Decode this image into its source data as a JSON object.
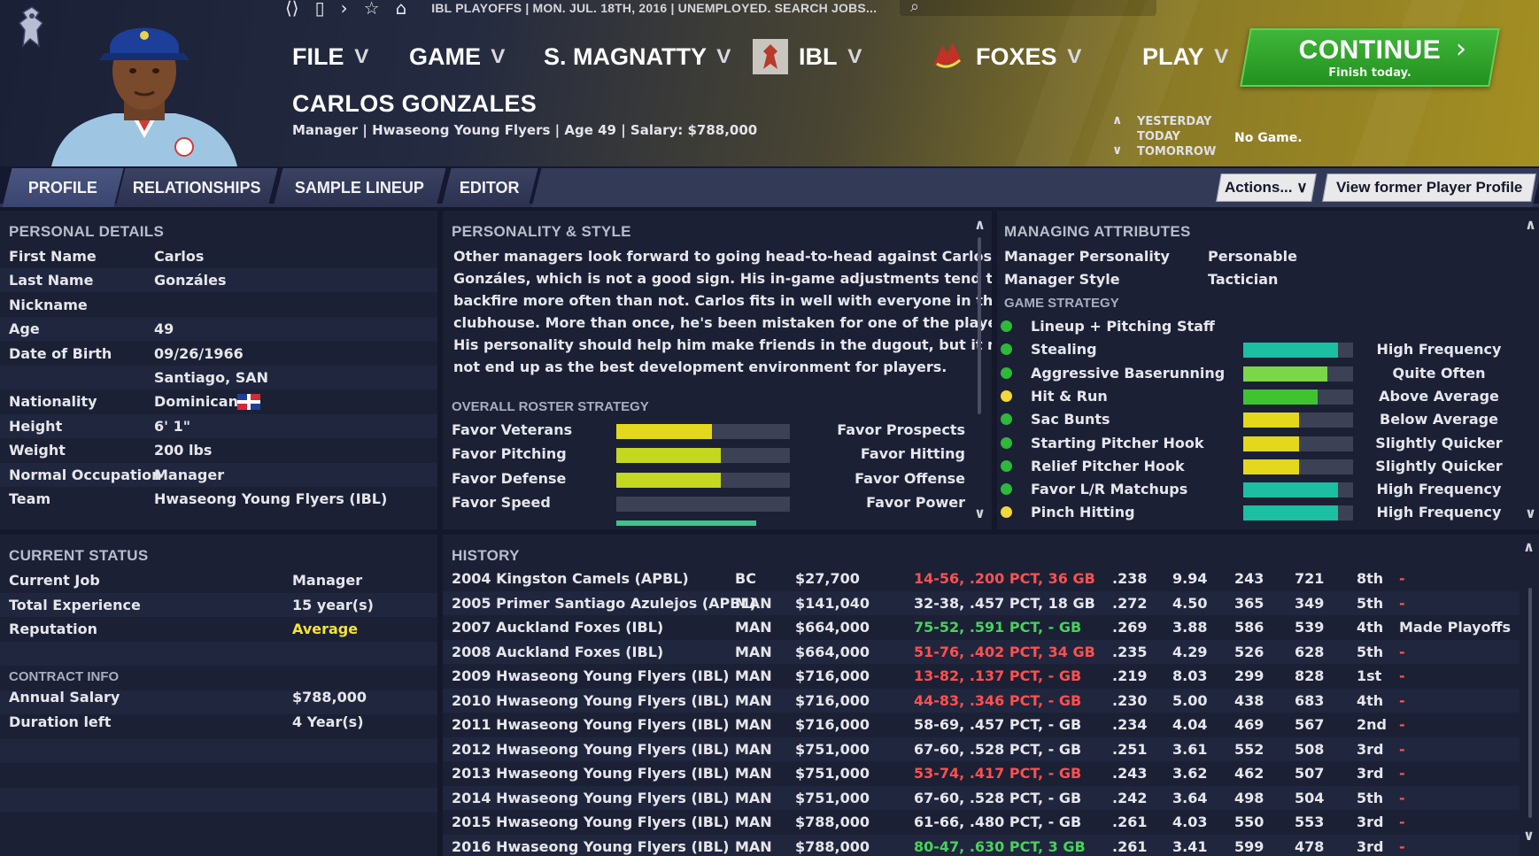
{
  "topbar": {
    "info": "IBL PLAYOFFS  |  MON. JUL. 18TH, 2016  |  UNEMPLOYED. SEARCH JOBS..."
  },
  "nav": {
    "file": "FILE",
    "game": "GAME",
    "manager": "S. MAGNATTY",
    "league": "IBL",
    "team": "FOXES",
    "play": "PLAY"
  },
  "continue": {
    "label": "CONTINUE",
    "sub": "Finish today."
  },
  "person": {
    "name": "CARLOS GONZALES",
    "info": "Manager | Hwaseong Young Flyers  |  Age 49  |  Salary: $788,000"
  },
  "day_nav": {
    "yesterday": "YESTERDAY",
    "today": "TODAY",
    "tomorrow": "TOMORROW",
    "status": "No Game."
  },
  "tabs": [
    "PROFILE",
    "RELATIONSHIPS",
    "SAMPLE LINEUP",
    "EDITOR"
  ],
  "actions": {
    "actions_label": "Actions...",
    "view_former": "View former Player Profile"
  },
  "personal": {
    "title": "PERSONAL DETAILS",
    "rows": [
      {
        "k": "First Name",
        "v": "Carlos"
      },
      {
        "k": "Last Name",
        "v": "Gonzáles"
      },
      {
        "k": "Nickname",
        "v": ""
      },
      {
        "k": "Age",
        "v": "49"
      },
      {
        "k": "Date of Birth",
        "v": "09/26/1966"
      },
      {
        "k": "",
        "v": "Santiago, SAN"
      },
      {
        "k": "Nationality",
        "v": "Dominican"
      },
      {
        "k": "Height",
        "v": "6' 1\""
      },
      {
        "k": "Weight",
        "v": "200 lbs"
      },
      {
        "k": "Normal Occupation",
        "v": "Manager"
      },
      {
        "k": "Team",
        "v": "Hwaseong Young Flyers (IBL)"
      }
    ]
  },
  "personality": {
    "title": "PERSONALITY & STYLE",
    "lines": [
      "Other managers look forward to going head-to-head against Carlos",
      "Gonzáles, which is not a good sign. His in-game adjustments tend to",
      "backfire more often than not. Carlos fits in well with everyone in the",
      "clubhouse. More than once, he's been mistaken for one of the players.",
      "His personality should help him make friends in the dugout, but it may",
      "not end up as the best development environment for players."
    ],
    "roster_title": "OVERALL ROSTER STRATEGY",
    "roster": [
      {
        "left": "Favor Veterans",
        "right": "Favor Prospects",
        "value": 0.55,
        "color": "#e3d81c"
      },
      {
        "left": "Favor Pitching",
        "right": "Favor Hitting",
        "value": 0.6,
        "color": "#c4d81f"
      },
      {
        "left": "Favor Defense",
        "right": "Favor Offense",
        "value": 0.6,
        "color": "#c4d81f"
      },
      {
        "left": "Favor Speed",
        "right": "Favor Power",
        "value": 0.0,
        "color": "#c4d81f"
      }
    ]
  },
  "managing": {
    "title": "MANAGING ATTRIBUTES",
    "personality_k": "Manager Personality",
    "personality_v": "Personable",
    "style_k": "Manager Style",
    "style_v": "Tactician",
    "strategy_title": "GAME STRATEGY",
    "strategy": [
      {
        "label": "Lineup + Pitching Staff",
        "dot": "#2fb83a",
        "value": null,
        "color": "",
        "desc": ""
      },
      {
        "label": "Stealing",
        "dot": "#2fb83a",
        "value": 0.86,
        "color": "#1cbfa2",
        "desc": "High Frequency"
      },
      {
        "label": "Aggressive Baserunning",
        "dot": "#2fb83a",
        "value": 0.77,
        "color": "#7bd64a",
        "desc": "Quite Often"
      },
      {
        "label": "Hit & Run",
        "dot": "#f2d83a",
        "value": 0.68,
        "color": "#3fc42f",
        "desc": "Above Average"
      },
      {
        "label": "Sac Bunts",
        "dot": "#2fb83a",
        "value": 0.51,
        "color": "#e3d81c",
        "desc": "Below Average"
      },
      {
        "label": "Starting Pitcher Hook",
        "dot": "#2fb83a",
        "value": 0.51,
        "color": "#e3d81c",
        "desc": "Slightly Quicker"
      },
      {
        "label": "Relief Pitcher Hook",
        "dot": "#2fb83a",
        "value": 0.51,
        "color": "#e3d81c",
        "desc": "Slightly Quicker"
      },
      {
        "label": "Favor L/R Matchups",
        "dot": "#2fb83a",
        "value": 0.86,
        "color": "#1cbfa2",
        "desc": "High Frequency"
      },
      {
        "label": "Pinch Hitting",
        "dot": "#f2d83a",
        "value": 0.86,
        "color": "#1cbfa2",
        "desc": "High Frequency"
      }
    ]
  },
  "current": {
    "title": "CURRENT STATUS",
    "rows": [
      {
        "k": "Current Job",
        "v": "Manager",
        "color": "#e6e6ec"
      },
      {
        "k": "Total Experience",
        "v": "15 year(s)",
        "color": "#e6e6ec"
      },
      {
        "k": "Reputation",
        "v": "Average",
        "color": "#f2e33c"
      }
    ],
    "contract_title": "CONTRACT INFO",
    "contract": [
      {
        "k": "Annual Salary",
        "v": "$788,000"
      },
      {
        "k": "Duration left",
        "v": "4 Year(s)"
      }
    ]
  },
  "history": {
    "title": "HISTORY",
    "rows": [
      {
        "team": "2004  Kingston Camels (APBL)",
        "pos": "BC",
        "salary": "$27,700",
        "record": "14-56, .200 PCT, 36 GB",
        "rc": "#ff5050",
        "avg": ".238",
        "era": "9.94",
        "rs": "243",
        "ra": "721",
        "place": "8th",
        "note": "-"
      },
      {
        "team": "2005  Primer Santiago Azulejos (APBL)",
        "pos": "MAN",
        "salary": "$141,040",
        "record": "32-38, .457 PCT, 18 GB",
        "rc": "#e6e6ec",
        "avg": ".272",
        "era": "4.50",
        "rs": "365",
        "ra": "349",
        "place": "5th",
        "note": "-"
      },
      {
        "team": "2007  Auckland Foxes (IBL)",
        "pos": "MAN",
        "salary": "$664,000",
        "record": "75-52, .591 PCT, - GB",
        "rc": "#45d45a",
        "avg": ".269",
        "era": "3.88",
        "rs": "586",
        "ra": "539",
        "place": "4th",
        "note": "Made Playoffs"
      },
      {
        "team": "2008  Auckland Foxes (IBL)",
        "pos": "MAN",
        "salary": "$664,000",
        "record": "51-76, .402 PCT, 34 GB",
        "rc": "#ff5050",
        "avg": ".235",
        "era": "4.29",
        "rs": "526",
        "ra": "628",
        "place": "5th",
        "note": "-"
      },
      {
        "team": "2009  Hwaseong Young Flyers (IBL)",
        "pos": "MAN",
        "salary": "$716,000",
        "record": "13-82, .137 PCT, - GB",
        "rc": "#ff5050",
        "avg": ".219",
        "era": "8.03",
        "rs": "299",
        "ra": "828",
        "place": "1st",
        "note": "-"
      },
      {
        "team": "2010  Hwaseong Young Flyers (IBL)",
        "pos": "MAN",
        "salary": "$716,000",
        "record": "44-83, .346 PCT, - GB",
        "rc": "#ff5050",
        "avg": ".230",
        "era": "5.00",
        "rs": "438",
        "ra": "683",
        "place": "4th",
        "note": "-"
      },
      {
        "team": "2011  Hwaseong Young Flyers (IBL)",
        "pos": "MAN",
        "salary": "$716,000",
        "record": "58-69, .457 PCT, - GB",
        "rc": "#e6e6ec",
        "avg": ".234",
        "era": "4.04",
        "rs": "469",
        "ra": "567",
        "place": "2nd",
        "note": "-"
      },
      {
        "team": "2012  Hwaseong Young Flyers (IBL)",
        "pos": "MAN",
        "salary": "$751,000",
        "record": "67-60, .528 PCT, - GB",
        "rc": "#e6e6ec",
        "avg": ".251",
        "era": "3.61",
        "rs": "552",
        "ra": "508",
        "place": "3rd",
        "note": "-"
      },
      {
        "team": "2013  Hwaseong Young Flyers (IBL)",
        "pos": "MAN",
        "salary": "$751,000",
        "record": "53-74, .417 PCT, - GB",
        "rc": "#ff5050",
        "avg": ".243",
        "era": "3.62",
        "rs": "462",
        "ra": "507",
        "place": "3rd",
        "note": "-"
      },
      {
        "team": "2014  Hwaseong Young Flyers (IBL)",
        "pos": "MAN",
        "salary": "$751,000",
        "record": "67-60, .528 PCT, - GB",
        "rc": "#e6e6ec",
        "avg": ".242",
        "era": "3.64",
        "rs": "498",
        "ra": "504",
        "place": "5th",
        "note": "-"
      },
      {
        "team": "2015  Hwaseong Young Flyers (IBL)",
        "pos": "MAN",
        "salary": "$788,000",
        "record": "61-66, .480 PCT, - GB",
        "rc": "#e6e6ec",
        "avg": ".261",
        "era": "4.03",
        "rs": "550",
        "ra": "553",
        "place": "3rd",
        "note": "-"
      },
      {
        "team": "2016  Hwaseong Young Flyers (IBL)",
        "pos": "MAN",
        "salary": "$788,000",
        "record": "80-47, .630 PCT, 3 GB",
        "rc": "#45d45a",
        "avg": ".261",
        "era": "3.41",
        "rs": "599",
        "ra": "478",
        "place": "3rd",
        "note": "-"
      }
    ]
  },
  "colors": {
    "accent": "#2fb83a",
    "panel": "#1b2035",
    "loss": "#ff5050",
    "win": "#45d45a",
    "reputation": "#f2e33c"
  }
}
